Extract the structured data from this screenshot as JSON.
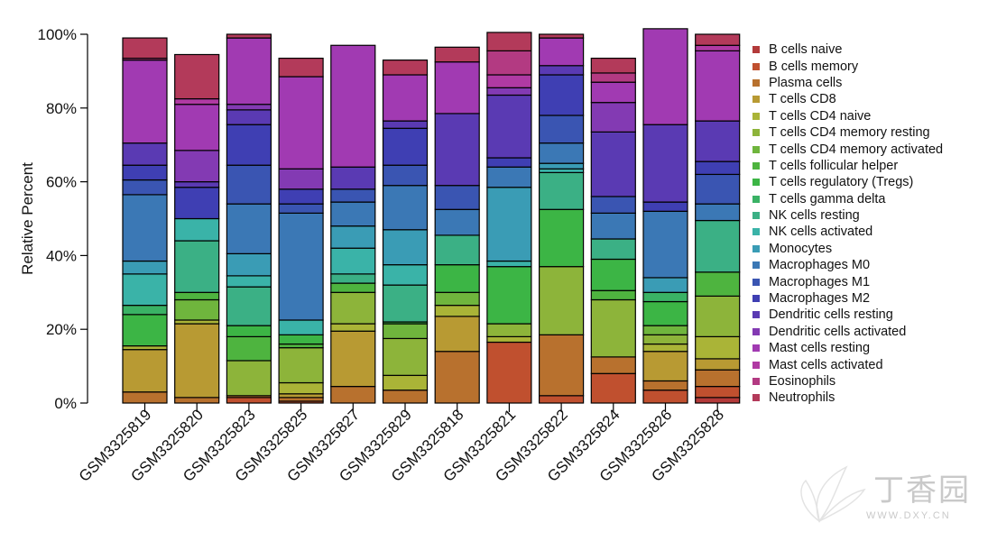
{
  "chart_data": {
    "type": "bar",
    "stacked": true,
    "normalized": true,
    "ylabel": "Relative Percent",
    "xlabel": "",
    "ylim": [
      0,
      100
    ],
    "yticks": [
      "0%",
      "20%",
      "40%",
      "60%",
      "80%",
      "100%"
    ],
    "legend_position": "right",
    "categories": [
      "GSM3325819",
      "GSM3325820",
      "GSM3325823",
      "GSM3325825",
      "GSM3325827",
      "GSM3325829",
      "GSM3325818",
      "GSM3325821",
      "GSM3325822",
      "GSM3325824",
      "GSM3325826",
      "GSM3325828"
    ],
    "series": [
      {
        "name": "B cells naive",
        "color": "#b33a3a",
        "values": [
          0,
          0,
          0,
          0,
          0,
          0,
          0,
          0,
          0,
          0,
          0,
          1.5
        ]
      },
      {
        "name": "B cells memory",
        "color": "#c0502f",
        "values": [
          0,
          0,
          1.5,
          0.5,
          0,
          0,
          0,
          16.5,
          2,
          8,
          3.5,
          3
        ]
      },
      {
        "name": "Plasma cells",
        "color": "#b8712e",
        "values": [
          3,
          1.5,
          0.5,
          1,
          4.5,
          3.5,
          14,
          0,
          16.5,
          4.5,
          2.5,
          4.5
        ]
      },
      {
        "name": "T cells CD8",
        "color": "#b89a33",
        "values": [
          11.5,
          20,
          0,
          1,
          15,
          0,
          9.5,
          0,
          0,
          0,
          8,
          3
        ]
      },
      {
        "name": "T cells CD4 naive",
        "color": "#aab437",
        "values": [
          1,
          1,
          0,
          3,
          2,
          4,
          3,
          1.5,
          0,
          0,
          2,
          6
        ]
      },
      {
        "name": "T cells CD4 memory resting",
        "color": "#8db43a",
        "values": [
          0,
          0,
          9.5,
          9.5,
          8.5,
          10,
          0,
          3.5,
          18.5,
          15.5,
          2.5,
          11
        ]
      },
      {
        "name": "T cells CD4 memory activated",
        "color": "#6fb53d",
        "values": [
          0,
          5.5,
          0,
          0,
          0,
          4,
          3.5,
          0,
          0,
          0,
          2.5,
          0
        ]
      },
      {
        "name": "T cells follicular helper",
        "color": "#4eb43f",
        "values": [
          0,
          2,
          6.5,
          1,
          2.5,
          0,
          0,
          0,
          0,
          2.5,
          0,
          6.5
        ]
      },
      {
        "name": "T cells regulatory (Tregs)",
        "color": "#3cb545",
        "values": [
          8.5,
          0,
          3,
          2.5,
          0,
          0.5,
          7.5,
          15.5,
          15.5,
          8.5,
          6.5,
          0
        ]
      },
      {
        "name": "T cells gamma delta",
        "color": "#3ab265",
        "values": [
          2.5,
          0,
          0,
          0,
          0,
          0,
          0,
          0,
          0,
          0,
          2.5,
          0
        ]
      },
      {
        "name": "NK cells resting",
        "color": "#3bb085",
        "values": [
          0,
          14,
          10.5,
          0,
          2.5,
          10,
          8,
          0,
          10,
          5.5,
          0,
          14
        ]
      },
      {
        "name": "NK cells activated",
        "color": "#3ab3a8",
        "values": [
          8.5,
          6,
          3,
          4,
          7,
          5.5,
          0,
          1.5,
          1,
          0,
          0,
          0
        ]
      },
      {
        "name": "Monocytes",
        "color": "#3a9cb5",
        "values": [
          3.5,
          0,
          6,
          0,
          6,
          9.5,
          0,
          20,
          1.5,
          0,
          4,
          0
        ]
      },
      {
        "name": "Macrophages M0",
        "color": "#3b78b5",
        "values": [
          18,
          0,
          13.5,
          29,
          6.5,
          12,
          7,
          5.5,
          5.5,
          7,
          18,
          4.5
        ]
      },
      {
        "name": "Macrophages M1",
        "color": "#3a55b2",
        "values": [
          4,
          0,
          10.5,
          2.5,
          3.5,
          5.5,
          6.5,
          0,
          7.5,
          4.5,
          0,
          8
        ]
      },
      {
        "name": "Macrophages M2",
        "color": "#3f3fb3",
        "values": [
          4,
          8.5,
          11,
          4,
          0,
          10,
          0,
          2.5,
          11,
          0,
          2.5,
          3.5
        ]
      },
      {
        "name": "Dendritic cells resting",
        "color": "#5a3ab3",
        "values": [
          6,
          1.5,
          4,
          0,
          6,
          2,
          19.5,
          17,
          2.5,
          17.5,
          21,
          11
        ]
      },
      {
        "name": "Dendritic cells activated",
        "color": "#833ab3",
        "values": [
          0,
          8.5,
          1.5,
          5.5,
          0,
          0,
          0,
          2,
          0,
          8,
          0,
          0
        ]
      },
      {
        "name": "Mast cells resting",
        "color": "#a13ab2",
        "values": [
          22.5,
          12.5,
          18,
          25,
          33,
          12.5,
          14,
          0,
          7.5,
          5.5,
          26,
          19
        ]
      },
      {
        "name": "Mast cells activated",
        "color": "#b03aa3",
        "values": [
          0,
          1.5,
          0,
          0,
          0,
          0,
          0,
          3.5,
          0,
          0,
          0,
          1.5
        ]
      },
      {
        "name": "Eosinophils",
        "color": "#b33a82",
        "values": [
          0.5,
          0,
          0,
          0,
          0,
          0,
          0,
          6.5,
          0,
          2.5,
          0,
          0
        ]
      },
      {
        "name": "Neutrophils",
        "color": "#b33a5a",
        "values": [
          5.5,
          12,
          1,
          5,
          0,
          4,
          4,
          5,
          1,
          4,
          0,
          3
        ]
      }
    ]
  },
  "watermark": {
    "text": "丁香园",
    "url": "WWW.DXY.CN"
  }
}
